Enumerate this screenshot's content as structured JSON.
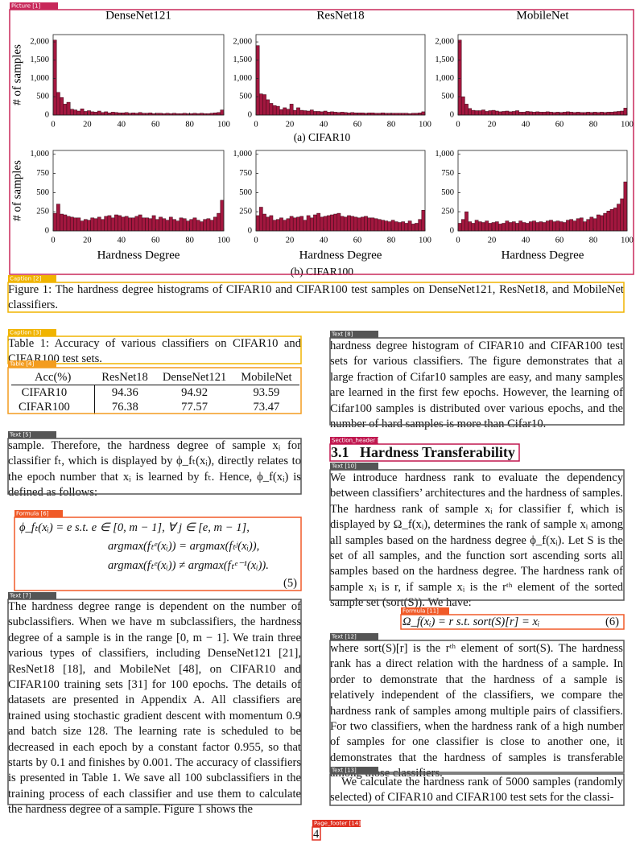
{
  "chart_data": [
    {
      "type": "histogram",
      "title": "DenseNet121",
      "ylabel": "# of samples",
      "color": "#a3173f",
      "bins": [
        0,
        2,
        4,
        6,
        8,
        10,
        12,
        14,
        16,
        18,
        20,
        22,
        24,
        26,
        28,
        30,
        32,
        34,
        36,
        38,
        40,
        42,
        44,
        46,
        48,
        50,
        52,
        54,
        56,
        58,
        60,
        62,
        64,
        66,
        68,
        70,
        72,
        74,
        76,
        78,
        80,
        82,
        84,
        86,
        88,
        90,
        92,
        94,
        96,
        98,
        100
      ],
      "values": [
        2050,
        620,
        480,
        300,
        350,
        160,
        140,
        110,
        170,
        100,
        120,
        90,
        80,
        110,
        70,
        90,
        60,
        80,
        70,
        60,
        60,
        70,
        50,
        60,
        50,
        70,
        50,
        50,
        60,
        40,
        50,
        50,
        40,
        50,
        40,
        50,
        40,
        40,
        50,
        40,
        40,
        50,
        40,
        50,
        40,
        40,
        50,
        60,
        70,
        140
      ],
      "xlim": [
        0,
        100
      ],
      "xticks": [
        0,
        20,
        40,
        60,
        80,
        100
      ],
      "ylim": [
        0,
        2200
      ],
      "yticks": [
        0,
        500,
        {
          "value": 1000,
          "label": "1,000"
        },
        {
          "value": 1500,
          "label": "1,500"
        },
        {
          "value": 2000,
          "label": "2,000"
        }
      ]
    },
    {
      "type": "histogram",
      "title": "ResNet18",
      "color": "#a3173f",
      "bins": [
        0,
        2,
        4,
        6,
        8,
        10,
        12,
        14,
        16,
        18,
        20,
        22,
        24,
        26,
        28,
        30,
        32,
        34,
        36,
        38,
        40,
        42,
        44,
        46,
        48,
        50,
        52,
        54,
        56,
        58,
        60,
        62,
        64,
        66,
        68,
        70,
        72,
        74,
        76,
        78,
        80,
        82,
        84,
        86,
        88,
        90,
        92,
        94,
        96,
        98,
        100
      ],
      "values": [
        1900,
        580,
        560,
        420,
        320,
        260,
        240,
        150,
        200,
        160,
        300,
        130,
        200,
        130,
        120,
        110,
        140,
        100,
        100,
        90,
        110,
        80,
        90,
        80,
        70,
        80,
        70,
        60,
        70,
        60,
        60,
        60,
        50,
        60,
        60,
        50,
        50,
        60,
        50,
        50,
        50,
        50,
        50,
        50,
        50,
        40,
        50,
        50,
        60,
        90
      ],
      "xlim": [
        0,
        100
      ],
      "xticks": [
        0,
        20,
        40,
        60,
        80,
        100
      ],
      "ylim": [
        0,
        2200
      ],
      "yticks": [
        0,
        500,
        {
          "value": 1000,
          "label": "1,000"
        },
        {
          "value": 1500,
          "label": "1,500"
        },
        {
          "value": 2000,
          "label": "2,000"
        }
      ]
    },
    {
      "type": "histogram",
      "title": "MobileNet",
      "color": "#a3173f",
      "bins": [
        0,
        2,
        4,
        6,
        8,
        10,
        12,
        14,
        16,
        18,
        20,
        22,
        24,
        26,
        28,
        30,
        32,
        34,
        36,
        38,
        40,
        42,
        44,
        46,
        48,
        50,
        52,
        54,
        56,
        58,
        60,
        62,
        64,
        66,
        68,
        70,
        72,
        74,
        76,
        78,
        80,
        82,
        84,
        86,
        88,
        90,
        92,
        94,
        96,
        98,
        100
      ],
      "values": [
        2050,
        500,
        300,
        180,
        130,
        120,
        120,
        140,
        100,
        120,
        130,
        110,
        90,
        100,
        110,
        90,
        100,
        120,
        80,
        80,
        100,
        90,
        80,
        90,
        80,
        80,
        90,
        80,
        70,
        80,
        70,
        80,
        90,
        80,
        70,
        80,
        70,
        70,
        80,
        70,
        80,
        70,
        80,
        70,
        80,
        80,
        90,
        100,
        110,
        190
      ],
      "xlim": [
        0,
        100
      ],
      "xticks": [
        0,
        20,
        40,
        60,
        80,
        100
      ],
      "ylim": [
        0,
        2200
      ],
      "yticks": [
        0,
        500,
        {
          "value": 1000,
          "label": "1,000"
        },
        {
          "value": 1500,
          "label": "1,500"
        },
        {
          "value": 2000,
          "label": "2,000"
        }
      ]
    },
    {
      "type": "histogram",
      "xlabel": "Hardness Degree",
      "ylabel": "# of samples",
      "color": "#a3173f",
      "bins": [
        0,
        2,
        4,
        6,
        8,
        10,
        12,
        14,
        16,
        18,
        20,
        22,
        24,
        26,
        28,
        30,
        32,
        34,
        36,
        38,
        40,
        42,
        44,
        46,
        48,
        50,
        52,
        54,
        56,
        58,
        60,
        62,
        64,
        66,
        68,
        70,
        72,
        74,
        76,
        78,
        80,
        82,
        84,
        86,
        88,
        90,
        92,
        94,
        96,
        98,
        100
      ],
      "values": [
        230,
        350,
        220,
        210,
        190,
        180,
        170,
        170,
        130,
        150,
        140,
        170,
        160,
        180,
        150,
        190,
        200,
        170,
        210,
        200,
        180,
        190,
        170,
        170,
        190,
        210,
        170,
        170,
        160,
        200,
        150,
        180,
        160,
        140,
        180,
        150,
        130,
        170,
        160,
        130,
        150,
        170,
        140,
        120,
        150,
        160,
        140,
        180,
        230,
        400
      ],
      "xlim": [
        0,
        100
      ],
      "xticks": [
        0,
        20,
        40,
        60,
        80,
        100
      ],
      "ylim": [
        0,
        1050
      ],
      "yticks": [
        0,
        250,
        500,
        750,
        {
          "value": 1000,
          "label": "1,000"
        }
      ]
    },
    {
      "type": "histogram",
      "xlabel": "Hardness Degree",
      "color": "#a3173f",
      "bins": [
        0,
        2,
        4,
        6,
        8,
        10,
        12,
        14,
        16,
        18,
        20,
        22,
        24,
        26,
        28,
        30,
        32,
        34,
        36,
        38,
        40,
        42,
        44,
        46,
        48,
        50,
        52,
        54,
        56,
        58,
        60,
        62,
        64,
        66,
        68,
        70,
        72,
        74,
        76,
        78,
        80,
        82,
        84,
        86,
        88,
        90,
        92,
        94,
        96,
        98,
        100
      ],
      "values": [
        200,
        310,
        220,
        180,
        200,
        140,
        150,
        170,
        140,
        160,
        190,
        170,
        180,
        190,
        140,
        200,
        170,
        210,
        230,
        180,
        190,
        200,
        210,
        220,
        230,
        190,
        180,
        200,
        190,
        180,
        170,
        180,
        190,
        170,
        170,
        160,
        150,
        140,
        130,
        120,
        140,
        120,
        110,
        120,
        100,
        130,
        90,
        100,
        150,
        270
      ],
      "xlim": [
        0,
        100
      ],
      "xticks": [
        0,
        20,
        40,
        60,
        80,
        100
      ],
      "ylim": [
        0,
        1050
      ],
      "yticks": [
        0,
        250,
        500,
        750,
        {
          "value": 1000,
          "label": "1,000"
        }
      ]
    },
    {
      "type": "histogram",
      "xlabel": "Hardness Degree",
      "color": "#a3173f",
      "bins": [
        0,
        2,
        4,
        6,
        8,
        10,
        12,
        14,
        16,
        18,
        20,
        22,
        24,
        26,
        28,
        30,
        32,
        34,
        36,
        38,
        40,
        42,
        44,
        46,
        48,
        50,
        52,
        54,
        56,
        58,
        60,
        62,
        64,
        66,
        68,
        70,
        72,
        74,
        76,
        78,
        80,
        82,
        84,
        86,
        88,
        90,
        92,
        94,
        96,
        98,
        100
      ],
      "values": [
        100,
        150,
        250,
        120,
        100,
        140,
        120,
        110,
        130,
        100,
        110,
        120,
        90,
        100,
        130,
        110,
        120,
        100,
        130,
        110,
        100,
        120,
        130,
        110,
        120,
        110,
        130,
        140,
        120,
        130,
        120,
        110,
        140,
        150,
        130,
        160,
        170,
        120,
        150,
        180,
        160,
        210,
        200,
        230,
        260,
        280,
        300,
        350,
        420,
        640
      ],
      "xlim": [
        0,
        100
      ],
      "xticks": [
        0,
        20,
        40,
        60,
        80,
        100
      ],
      "ylim": [
        0,
        1050
      ],
      "yticks": [
        0,
        250,
        500,
        750,
        {
          "value": 1000,
          "label": "1,000"
        }
      ]
    }
  ],
  "figure": {
    "subcaptions": [
      "(a) CIFAR10",
      "(b) CIFAR100"
    ],
    "caption": "Figure 1: The hardness degree histograms of CIFAR10 and CIFAR100 test samples on DenseNet121, ResNet18, and MobileNet classifiers."
  },
  "table": {
    "caption": "Table 1: Accuracy of various classifiers on CIFAR10 and CIFAR100 test sets.",
    "header": [
      "Acc(%)",
      "ResNet18",
      "DenseNet121",
      "MobileNet"
    ],
    "rows": [
      [
        "CIFAR10",
        94.36,
        94.92,
        93.59
      ],
      [
        "CIFAR100",
        76.38,
        77.57,
        73.47
      ]
    ]
  },
  "left": {
    "text5": "sample. Therefore, the hardness degree of sample xᵢ for classifier fₜ, which is displayed by ϕ_fₜ(xᵢ), directly relates to the epoch number that xᵢ is learned by fₜ. Hence, ϕ_f(xᵢ) is defined as follows:",
    "formula5": [
      "ϕ_fₜ(xᵢ) = e    s.t.    e ∈ [0, m − 1], ∀ j ∈ [e, m − 1],",
      "argmax(fₜᵉ(xᵢ)) = argmax(fₜʲ(xᵢ)),",
      "argmax(fₜᵉ(xᵢ)) ≠ argmax(fₜᵉ⁻¹(xᵢ))."
    ],
    "formula5_number": "(5)",
    "text7": "The hardness degree range is dependent on the number of subclassifiers. When we have m subclassifiers, the hardness degree of a sample is in the range [0, m − 1]. We train three various types of classifiers, including DenseNet121 [21], ResNet18 [18], and MobileNet [48], on CIFAR10 and CIFAR100 training sets [31] for 100 epochs. The details of datasets are presented in Appendix A. All classifiers are trained using stochastic gradient descent with momentum 0.9 and batch size 128. The learning rate is scheduled to be decreased in each epoch by a constant factor 0.955, so that starts by 0.1 and finishes by 0.001. The accuracy of classifiers is presented in Table 1. We save all 100 subclassifiers in the training process of each classifier and use them to calculate the hardness degree of a sample. Figure 1 shows the"
  },
  "right": {
    "text8": "hardness degree histogram of CIFAR10 and CIFAR100 test sets for various classifiers. The figure demonstrates that a large fraction of Cifar10 samples are easy, and many samples are learned in the first few epochs. However, the learning of Cifar100 samples is distributed over various epochs, and the number of hard samples is more than Cifar10.",
    "section_number": "3.1",
    "section_title": "Hardness Transferability",
    "text10": "We introduce hardness rank to evaluate the dependency between classifiers’ architectures and the hardness of samples. The hardness rank of sample xᵢ for classifier f, which is displayed by Ω_f(xᵢ), determines the rank of sample xᵢ among all samples based on the hardness degree ϕ_f(xᵢ). Let S is the set of all samples, and the function sort ascending sorts all samples based on the hardness degree. The hardness rank of sample xᵢ is r, if sample xᵢ is the rᵗʰ element of the sorted sample set (sort(S)). We have:",
    "formula6": "Ω_f(xᵢ) = r  s.t.  sort(S)[r] = xᵢ",
    "formula6_number": "(6)",
    "text12": "where sort(S)[r] is the rᵗʰ element of sort(S). The hardness rank has a direct relation with the hardness of a sample. In order to demonstrate that the hardness of a sample is relatively independent of the classifiers, we compare the hardness rank of samples among multiple pairs of classifiers. For two classifiers, when the hardness rank of a high number of samples for one classifier is close to another one, it demonstrates that the hardness of samples is transferable among those classifiers.",
    "text13": "We calculate the hardness rank of 5000 samples (randomly selected) of CIFAR10 and CIFAR100 test sets for the classi-"
  },
  "page_footer": "4",
  "annotations": [
    "Picture [1]",
    "Caption [2]",
    "Caption [3]",
    "Table [4]",
    "Text [5]",
    "Formula [6]",
    "Text [7]",
    "Text [8]",
    "Section_header [9]",
    "Text [10]",
    "Formula [11]",
    "Text [12]",
    "Text [13]",
    "Page_footer [14]"
  ]
}
